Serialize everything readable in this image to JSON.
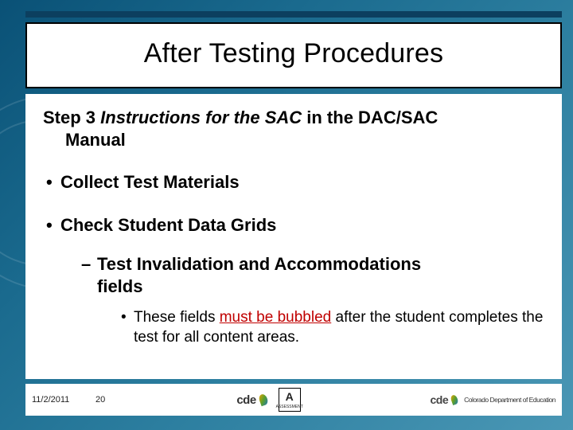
{
  "colors": {
    "bg_gradient_start": "#0a5176",
    "bg_gradient_end": "#4a97b5",
    "topbar": "#0c3f5f",
    "title_border": "#000000",
    "body_bg": "#ffffff",
    "text": "#000000",
    "underline_red": "#c00000"
  },
  "title": "After Testing Procedures",
  "step": {
    "prefix": "Step 3 ",
    "emph": "Instructions for the SAC",
    "rest1": " in the DAC/SAC",
    "line2": "Manual"
  },
  "bullets": {
    "b1": "Collect Test Materials",
    "b2": "Check Student Data Grids",
    "sub1_prefix": "Test Invalidation and Accommodations",
    "sub1_line2": "fields",
    "sub2_prefix": "These fields ",
    "sub2_red": "must be bubbled",
    "sub2_rest": " after the student completes the test for all content areas."
  },
  "footer": {
    "date": "11/2/2011",
    "page": "20",
    "logo1": "cde",
    "logo_ua_top": "A",
    "logo_ua_sub": "ASSESSMENT",
    "logo2": "cde",
    "dept": "Colorado Department of Education"
  }
}
